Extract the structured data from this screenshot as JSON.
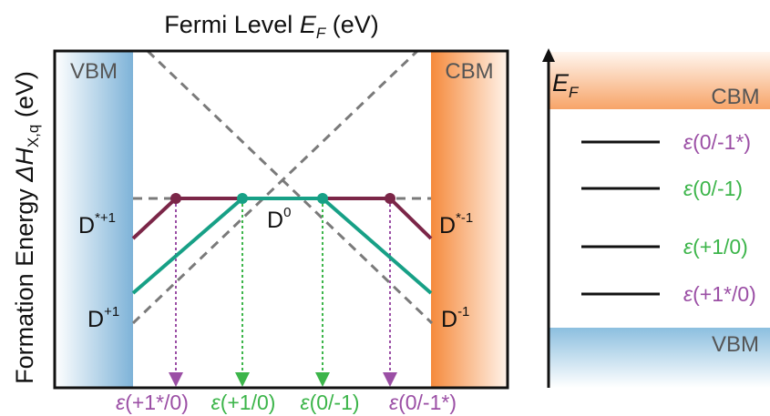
{
  "left_panel": {
    "title": "Fermi Level E_F (eV)",
    "title_main": "Fermi Level ",
    "title_var": "E",
    "title_sub": "F",
    "title_unit": " (eV)",
    "ylabel_main": "Formation Energy ",
    "ylabel_var": "ΔH",
    "ylabel_sub": "X,q",
    "ylabel_unit": " (eV)",
    "vbm_label": "VBM",
    "cbm_label": "CBM",
    "state_labels": {
      "d_star_plus1_base": "D",
      "d_star_plus1_sup": "*+1",
      "d0_base": "D",
      "d0_sup": "0",
      "d_star_minus1_base": "D",
      "d_star_minus1_sup": "*-1",
      "d_plus1_base": "D",
      "d_plus1_sup": "+1",
      "d_minus1_base": "D",
      "d_minus1_sup": "-1"
    },
    "transition_labels": [
      {
        "eps": "ε",
        "rest": "(+1*/0)",
        "color": "#9b4fa5"
      },
      {
        "eps": "ε",
        "rest": "(+1/0)",
        "color": "#3cb54a"
      },
      {
        "eps": "ε",
        "rest": "(0/-1)",
        "color": "#3cb54a"
      },
      {
        "eps": "ε",
        "rest": "(0/-1*)",
        "color": "#9b4fa5"
      }
    ]
  },
  "right_panel": {
    "axis_var": "E",
    "axis_sub": "F",
    "cbm_label": "CBM",
    "vbm_label": "VBM",
    "levels": [
      {
        "eps": "ε",
        "rest": "(0/-1*)",
        "color": "#9b4fa5"
      },
      {
        "eps": "ε",
        "rest": "(0/-1)",
        "color": "#3cb54a"
      },
      {
        "eps": "ε",
        "rest": "(+1/0)",
        "color": "#3cb54a"
      },
      {
        "eps": "ε",
        "rest": "(+1*/0)",
        "color": "#9b4fa5"
      }
    ]
  },
  "colors": {
    "maroon_line": "#7b2648",
    "teal_line": "#17a086",
    "dashed_line": "#7a7a7a",
    "vbm_band": "#8fbfdf",
    "cbm_band": "#f6a56a",
    "purple_text": "#9b4fa5",
    "green_text": "#3cb54a"
  }
}
